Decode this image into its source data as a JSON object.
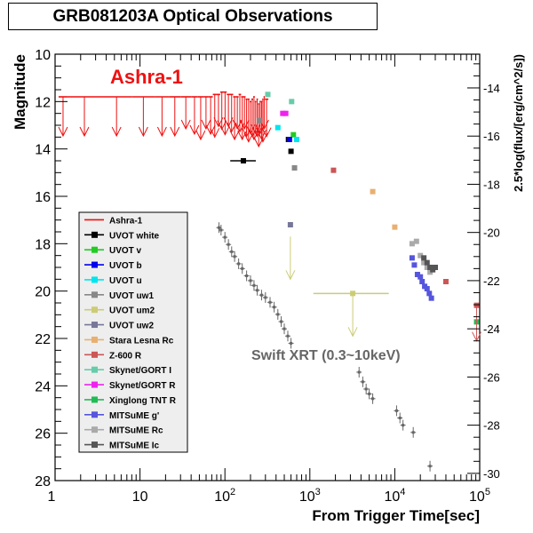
{
  "title": "GRB081203A Optical Observations",
  "annotations": {
    "ashra": "Ashra-1",
    "xrt": "Swift XRT (0.3~10keV)"
  },
  "colors": {
    "ashra": "#ee1111",
    "xrt": "#666666"
  },
  "chart_data": {
    "type": "scatter",
    "title": "GRB081203A Optical Observations",
    "xlabel": "From Trigger Time[sec]",
    "ylabel": "Magnitude",
    "y2label": "2.5*log(flux/[erg/cm^2/s])",
    "xscale": "log",
    "xlim": [
      1,
      100000
    ],
    "ylim": [
      10,
      28
    ],
    "y_inverted": true,
    "y2lim": [
      -12.6,
      -30.3
    ],
    "x_tick_labels": [
      "1",
      "10",
      "10^2",
      "10^3",
      "10^4",
      "10^5"
    ],
    "y_tick_labels": [
      "10",
      "12",
      "14",
      "16",
      "18",
      "20",
      "22",
      "24",
      "26",
      "28"
    ],
    "y2_tick_labels": [
      "-14",
      "-16",
      "-18",
      "-20",
      "-22",
      "-24",
      "-26",
      "-28",
      "-30"
    ],
    "legend_position": "lower-left",
    "grid": false,
    "series": [
      {
        "name": "Ashra-1",
        "color": "#ee1111",
        "kind": "upper-limits",
        "points": [
          [
            1.1,
            11.8
          ],
          [
            1.4,
            11.8
          ],
          [
            3.5,
            11.8
          ],
          [
            8.0,
            11.8
          ],
          [
            15,
            11.8
          ],
          [
            22,
            11.8
          ],
          [
            30,
            11.8
          ],
          [
            40,
            11.8
          ],
          [
            48,
            11.8
          ],
          [
            56,
            11.8
          ],
          [
            64,
            11.8
          ],
          [
            72,
            11.7
          ],
          [
            80,
            11.7
          ],
          [
            88,
            11.6
          ],
          [
            96,
            11.6
          ],
          [
            105,
            11.7
          ],
          [
            115,
            11.7
          ],
          [
            125,
            11.8
          ],
          [
            135,
            11.8
          ],
          [
            145,
            11.7
          ],
          [
            155,
            11.8
          ],
          [
            165,
            11.8
          ],
          [
            175,
            11.9
          ],
          [
            185,
            11.9
          ],
          [
            195,
            12.0
          ],
          [
            205,
            11.9
          ],
          [
            215,
            11.8
          ],
          [
            225,
            12.0
          ],
          [
            235,
            11.9
          ],
          [
            245,
            12.1
          ],
          [
            255,
            12.0
          ],
          [
            265,
            12.0
          ],
          [
            275,
            11.9
          ],
          [
            285,
            11.8
          ],
          [
            295,
            11.9
          ]
        ]
      },
      {
        "name": "UVOT white",
        "color": "#000000",
        "points": [
          [
            165,
            14.5
          ],
          [
            560,
            13.6
          ],
          [
            600,
            14.1
          ]
        ]
      },
      {
        "name": "UVOT v",
        "color": "#22cc22",
        "points": [
          [
            640,
            13.4
          ]
        ]
      },
      {
        "name": "UVOT b",
        "color": "#0000ee",
        "points": [
          [
            575,
            13.6
          ]
        ]
      },
      {
        "name": "UVOT u",
        "color": "#00e5ee",
        "points": [
          [
            420,
            13.1
          ],
          [
            700,
            13.6
          ]
        ]
      },
      {
        "name": "UVOT uw1",
        "color": "#888888",
        "points": [
          [
            255,
            12.8
          ],
          [
            660,
            14.8
          ]
        ]
      },
      {
        "name": "UVOT um2",
        "color": "#cccc77",
        "points": [
          [
            3200,
            20.1
          ]
        ]
      },
      {
        "name": "UVOT uw2",
        "color": "#777799",
        "points": [
          [
            590,
            17.2
          ]
        ]
      },
      {
        "name": "Stara Lesna Rc",
        "color": "#e8b070",
        "points": [
          [
            5500,
            15.8
          ],
          [
            10000,
            17.3
          ]
        ]
      },
      {
        "name": "Z-600 R",
        "color": "#cc5555",
        "points": [
          [
            1900,
            14.9
          ],
          [
            40000,
            19.6
          ],
          [
            92000,
            20.6
          ]
        ]
      },
      {
        "name": "Skynet/GORT I",
        "color": "#66ccaa",
        "points": [
          [
            320,
            11.7
          ],
          [
            610,
            12.0
          ]
        ]
      },
      {
        "name": "Skynet/GORT R",
        "color": "#ee22ee",
        "points": [
          [
            480,
            12.5
          ],
          [
            520,
            12.5
          ]
        ]
      },
      {
        "name": "Xinglong TNT R",
        "color": "#22bb55",
        "points": [
          [
            92000,
            21.3
          ]
        ]
      },
      {
        "name": "MITSuME g'",
        "color": "#5555dd",
        "points": [
          [
            16000,
            18.6
          ],
          [
            17000,
            18.9
          ],
          [
            18500,
            19.3
          ],
          [
            20000,
            19.4
          ],
          [
            21000,
            19.6
          ],
          [
            22500,
            19.8
          ],
          [
            24000,
            19.9
          ],
          [
            25500,
            20.1
          ],
          [
            27000,
            20.3
          ]
        ]
      },
      {
        "name": "MITSuME Rc",
        "color": "#aaaaaa",
        "points": [
          [
            16000,
            18.0
          ],
          [
            18000,
            17.9
          ],
          [
            20000,
            18.5
          ],
          [
            22000,
            18.8
          ],
          [
            24000,
            19.0
          ],
          [
            26000,
            19.2
          ]
        ]
      },
      {
        "name": "MITSuME Ic",
        "color": "#555555",
        "points": [
          [
            22000,
            18.6
          ],
          [
            24000,
            18.8
          ],
          [
            26000,
            19.0
          ],
          [
            28000,
            19.1
          ],
          [
            30000,
            19.0
          ]
        ]
      },
      {
        "name": "Swift XRT (0.3~10keV)",
        "color": "#666666",
        "axis": "right",
        "points": [
          [
            85,
            -19.8
          ],
          [
            90,
            -19.9
          ],
          [
            100,
            -20.2
          ],
          [
            110,
            -20.5
          ],
          [
            120,
            -20.8
          ],
          [
            130,
            -21.0
          ],
          [
            145,
            -21.3
          ],
          [
            160,
            -21.5
          ],
          [
            180,
            -21.8
          ],
          [
            200,
            -22.0
          ],
          [
            220,
            -22.2
          ],
          [
            240,
            -22.4
          ],
          [
            270,
            -22.6
          ],
          [
            300,
            -22.7
          ],
          [
            340,
            -22.9
          ],
          [
            380,
            -23.1
          ],
          [
            420,
            -23.4
          ],
          [
            460,
            -23.7
          ],
          [
            500,
            -24.0
          ],
          [
            550,
            -24.3
          ],
          [
            600,
            -24.6
          ],
          [
            3800,
            -25.8
          ],
          [
            4200,
            -26.2
          ],
          [
            4600,
            -26.5
          ],
          [
            5000,
            -26.7
          ],
          [
            5500,
            -26.9
          ],
          [
            10500,
            -27.4
          ],
          [
            11500,
            -27.7
          ],
          [
            12500,
            -28.0
          ],
          [
            16500,
            -28.3
          ],
          [
            26000,
            -29.7
          ]
        ]
      }
    ],
    "um2_upper_limits": [
      [
        590,
        17.7
      ],
      [
        3200,
        20.1
      ]
    ]
  }
}
